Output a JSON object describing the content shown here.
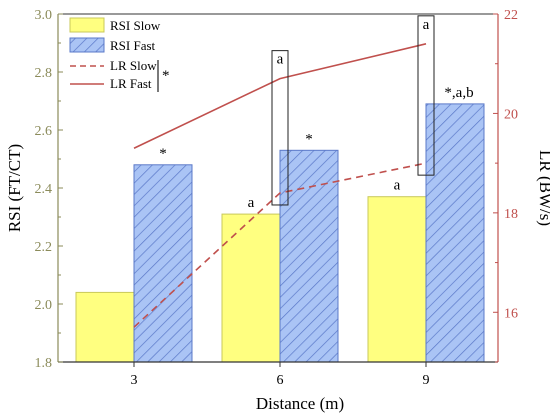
{
  "chart_data": {
    "type": "bar",
    "categories": [
      "3",
      "6",
      "9"
    ],
    "xlabel": "Distance (m)",
    "ylabel": "RSI (FT/CT)",
    "y2label": "LR (BW/s)",
    "ylim": [
      1.8,
      3.0
    ],
    "y2lim": [
      15,
      22
    ],
    "yticks": [
      "1.8",
      "2.0",
      "2.2",
      "2.4",
      "2.6",
      "2.8",
      "3.0"
    ],
    "y2ticks": [
      "16",
      "18",
      "20",
      "22"
    ],
    "legend_position": "top-left",
    "legend_bracket_mark": "*",
    "bar_series": [
      {
        "name": "RSI Slow",
        "values": [
          2.04,
          2.31,
          2.37
        ],
        "labels": [
          "",
          "a",
          "a"
        ],
        "color": "#ffff80"
      },
      {
        "name": "RSI Fast",
        "values": [
          2.48,
          2.53,
          2.69
        ],
        "labels": [
          "*",
          "*",
          "*,a,b"
        ],
        "color": "#aac4f5"
      }
    ],
    "line_series": [
      {
        "name": "LR Slow",
        "values": [
          15.7,
          18.4,
          19.0
        ],
        "style": "dashed",
        "color": "#c0504d"
      },
      {
        "name": "LR Fast",
        "values": [
          19.3,
          20.7,
          21.4
        ],
        "style": "solid",
        "color": "#c0504d"
      }
    ],
    "line_box_labels": [
      "",
      "a",
      "a"
    ],
    "left_axis_color": "#8b8b5a",
    "right_axis_color": "#c0504d"
  }
}
